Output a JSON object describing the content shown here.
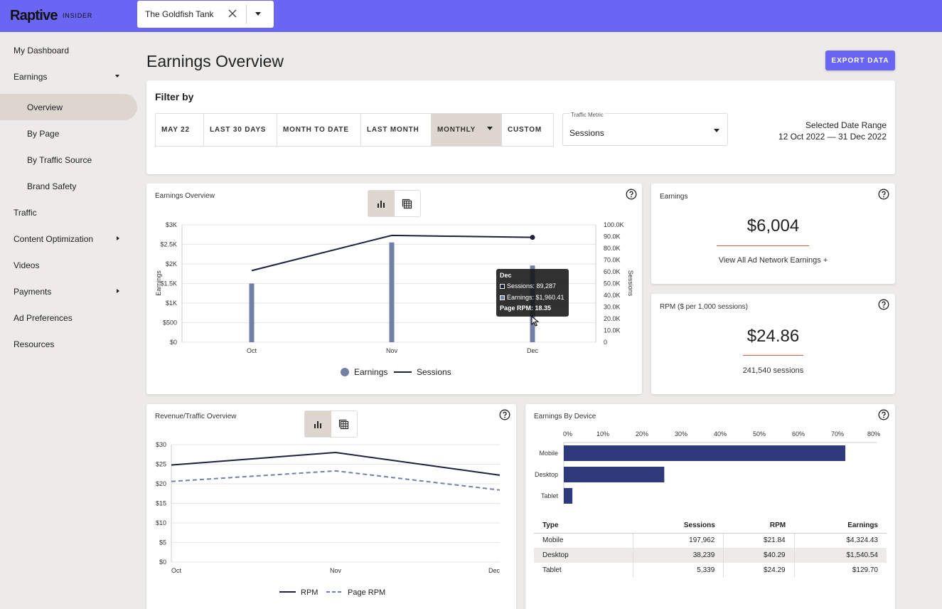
{
  "brand": {
    "logo": "Raptive",
    "sub": "INSIDER",
    "accent": "#6a65f2"
  },
  "site_selector": {
    "value": "The Goldfish Tank"
  },
  "sidebar": {
    "items": [
      {
        "label": "My Dashboard"
      },
      {
        "label": "Earnings"
      },
      {
        "label": "Overview"
      },
      {
        "label": "By Page"
      },
      {
        "label": "By Traffic Source"
      },
      {
        "label": "Brand Safety"
      },
      {
        "label": "Traffic"
      },
      {
        "label": "Content Optimization"
      },
      {
        "label": "Videos"
      },
      {
        "label": "Payments"
      },
      {
        "label": "Ad Preferences"
      },
      {
        "label": "Resources"
      }
    ]
  },
  "page": {
    "title": "Earnings Overview",
    "export_label": "EXPORT DATA"
  },
  "filter": {
    "title": "Filter by",
    "segments": [
      "MAY 22",
      "LAST 30 DAYS",
      "MONTH TO DATE",
      "LAST MONTH",
      "MONTHLY",
      "CUSTOM"
    ],
    "selected": "MONTHLY",
    "traffic_metric_label": "Traffic Metric",
    "traffic_metric_value": "Sessions",
    "range_label": "Selected Date Range",
    "range_value": "12 Oct 2022 — 31 Dec 2022"
  },
  "earnings_chart": {
    "title": "Earnings Overview",
    "tooltip": {
      "title": "Dec",
      "sessions": "Sessions: 89,287",
      "earnings": "Earnings: $1,960.41",
      "rpm": "Page RPM: 18.35"
    }
  },
  "earnings_card": {
    "title": "Earnings",
    "value": "$6,004",
    "link": "View All Ad Network Earnings +"
  },
  "rpm_card": {
    "title": "RPM ($ per 1,000 sessions)",
    "value": "$24.86",
    "sub": "241,540 sessions"
  },
  "revenue_chart": {
    "title": "Revenue/Traffic Overview"
  },
  "device_card": {
    "title": "Earnings By Device",
    "table": {
      "headers": [
        "Type",
        "Sessions",
        "RPM",
        "Earnings"
      ],
      "rows": [
        [
          "Mobile",
          "197,962",
          "$21.84",
          "$4,324.43"
        ],
        [
          "Desktop",
          "38,239",
          "$40.29",
          "$1,540.54"
        ],
        [
          "Tablet",
          "5,339",
          "$24.29",
          "$129.70"
        ]
      ]
    }
  },
  "chart_data": [
    {
      "type": "bar",
      "title": "Earnings Overview",
      "categories": [
        "Oct",
        "Nov",
        "Dec"
      ],
      "ylabel": "Earnings",
      "y2label": "Sessions",
      "y_ticks": [
        "$0",
        "$500",
        "$1K",
        "$1.5K",
        "$2K",
        "$2.5K",
        "$3K"
      ],
      "ylim": [
        0,
        3000
      ],
      "y2_ticks": [
        "0",
        "10.0K",
        "20.0K",
        "30.0K",
        "40.0K",
        "50.0K",
        "60.0K",
        "70.0K",
        "80.0K",
        "90.0K",
        "100.0K"
      ],
      "y2lim": [
        0,
        100000
      ],
      "series": [
        {
          "name": "Earnings",
          "kind": "bar",
          "axis": "left",
          "values": [
            1500,
            2550,
            1960.41
          ],
          "color": "#7280a8"
        },
        {
          "name": "Sessions",
          "kind": "line",
          "axis": "right",
          "values": [
            61000,
            91000,
            89287
          ],
          "color": "#1d2140"
        }
      ],
      "legend": "bottom"
    },
    {
      "type": "line",
      "title": "Revenue/Traffic Overview",
      "categories": [
        "Oct",
        "Nov",
        "Dec"
      ],
      "y_ticks": [
        "$0",
        "$5",
        "$10",
        "$15",
        "$20",
        "$25",
        "$30"
      ],
      "ylim": [
        0,
        30
      ],
      "series": [
        {
          "name": "RPM",
          "values": [
            24.8,
            28,
            22.2
          ],
          "color": "#1d2140",
          "dash": false
        },
        {
          "name": "Page RPM",
          "values": [
            20.6,
            23.3,
            18.4
          ],
          "color": "#7280a8",
          "dash": true
        }
      ],
      "legend": "bottom"
    },
    {
      "type": "bar",
      "orientation": "horizontal",
      "title": "Earnings By Device",
      "categories": [
        "Mobile",
        "Desktop",
        "Tablet"
      ],
      "values": [
        72,
        25.7,
        2.2
      ],
      "x_ticks": [
        "0%",
        "10%",
        "20%",
        "30%",
        "40%",
        "50%",
        "60%",
        "70%",
        "80%"
      ],
      "xlim": [
        0,
        80
      ],
      "color": "#2e3a7c"
    }
  ]
}
